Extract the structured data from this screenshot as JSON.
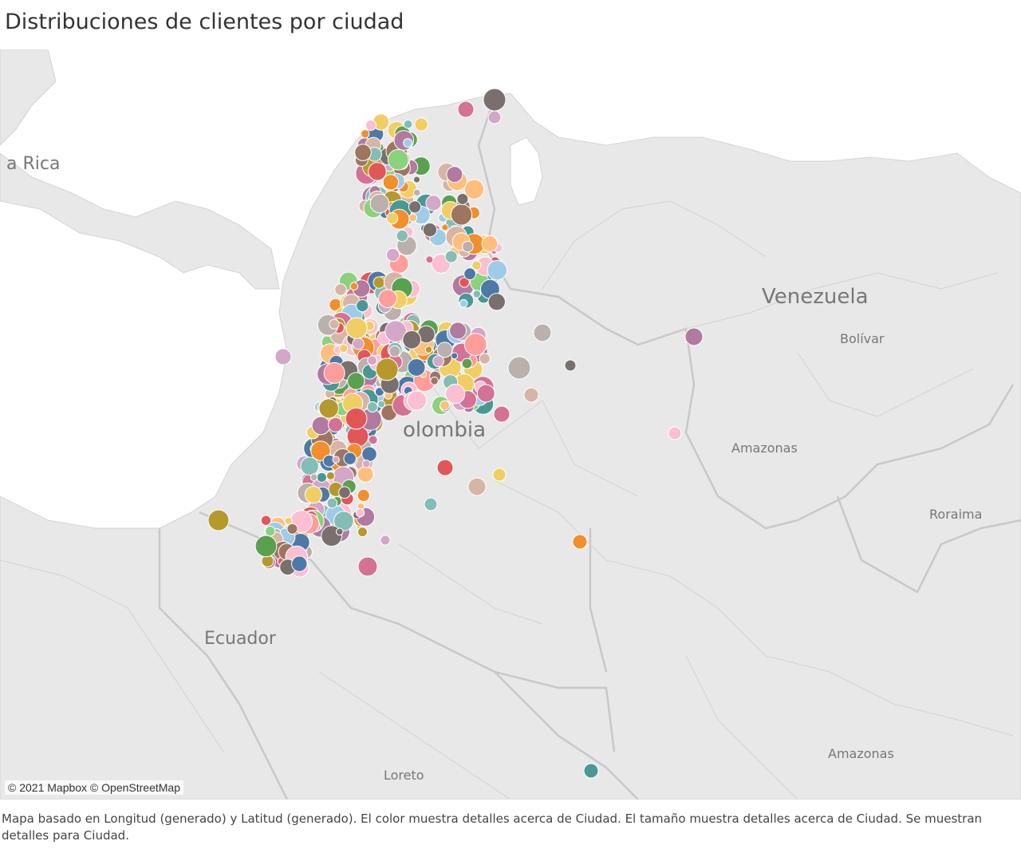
{
  "title": "Distribuciones de clientes por ciudad",
  "attribution": "© 2021 Mapbox © OpenStreetMap",
  "caption": "Mapa basado en Longitud (generado) y Latitud (generado).  El color muestra detalles acerca de Ciudad.  El tamaño muestra detalles acerca de Ciudad.  Se muestran detalles para Ciudad.",
  "map_labels": {
    "costa_rica": "a Rica",
    "venezuela": "Venezuela",
    "bolivar": "Bolívar",
    "amazonas_ve": "Amazonas",
    "roraima": "Roraima",
    "colombia": "olombia",
    "ecuador": "Ecuador",
    "loreto": "Loreto",
    "amazonas_br": "Amazonas"
  },
  "colors": {
    "ocean": "#ffffff",
    "land": "#e8e8e8",
    "border": "#bdbdbd",
    "palette": [
      "#4e79a7",
      "#a0cbe8",
      "#f28e2b",
      "#ffbe7d",
      "#59a14f",
      "#8cd17d",
      "#b6992d",
      "#f1ce63",
      "#499894",
      "#86bcb6",
      "#e15759",
      "#ff9d9a",
      "#79706e",
      "#bab0ac",
      "#d37295",
      "#fabfd2",
      "#b07aa1",
      "#d4a6c8",
      "#9d7660",
      "#d7b5a6"
    ]
  }
}
